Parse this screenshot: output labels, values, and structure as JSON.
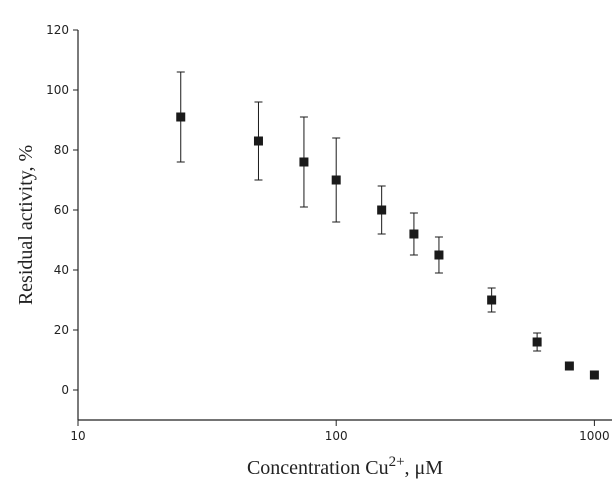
{
  "chart_data": {
    "type": "scatter",
    "xlabel": {
      "text": "Concentration Cu",
      "superscript": "2+",
      "suffix": ", μM"
    },
    "ylabel": "Residual activity, %",
    "x": [
      25,
      50,
      75,
      100,
      150,
      200,
      250,
      400,
      600,
      800,
      1000
    ],
    "series": [
      {
        "color": "#1a1a1a",
        "values": [
          91,
          83,
          76,
          70,
          60,
          52,
          45,
          30,
          16,
          8,
          5
        ],
        "errors": [
          15,
          13,
          15,
          14,
          8,
          7,
          6,
          4,
          3,
          1,
          1
        ]
      }
    ],
    "xlim": [
      10,
      1170
    ],
    "xticks": [
      10,
      100,
      1000
    ],
    "xscale": "log",
    "ylim": [
      -10,
      120
    ],
    "yticks": [
      0,
      20,
      40,
      60,
      80,
      100,
      120
    ]
  }
}
